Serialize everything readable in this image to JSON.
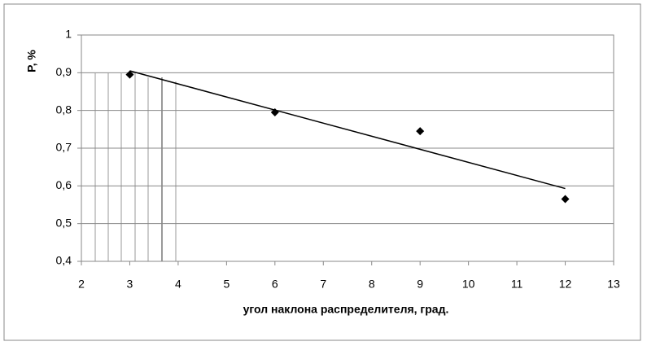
{
  "chart_data": {
    "type": "scatter",
    "x_label": "угол наклона распределителя, град.",
    "y_label": "P, %",
    "x": [
      3,
      6,
      9,
      12
    ],
    "values": [
      0.895,
      0.795,
      0.745,
      0.565
    ],
    "color": "#000000",
    "trendline": {
      "x": [
        3,
        12
      ],
      "values": [
        0.905,
        0.593
      ]
    },
    "xlim": [
      2,
      13
    ],
    "xticks": [
      2,
      3,
      4,
      5,
      6,
      7,
      8,
      9,
      10,
      11,
      12,
      13
    ],
    "ylim": [
      0.4,
      1
    ],
    "yticks": [
      {
        "value": 0.4,
        "label": "0,4"
      },
      {
        "value": 0.5,
        "label": "0,5"
      },
      {
        "value": 0.6,
        "label": "0,6"
      },
      {
        "value": 0.7,
        "label": "0,7"
      },
      {
        "value": 0.8,
        "label": "0,8"
      },
      {
        "value": 0.9,
        "label": "0,9"
      },
      1
    ],
    "grid": true
  }
}
